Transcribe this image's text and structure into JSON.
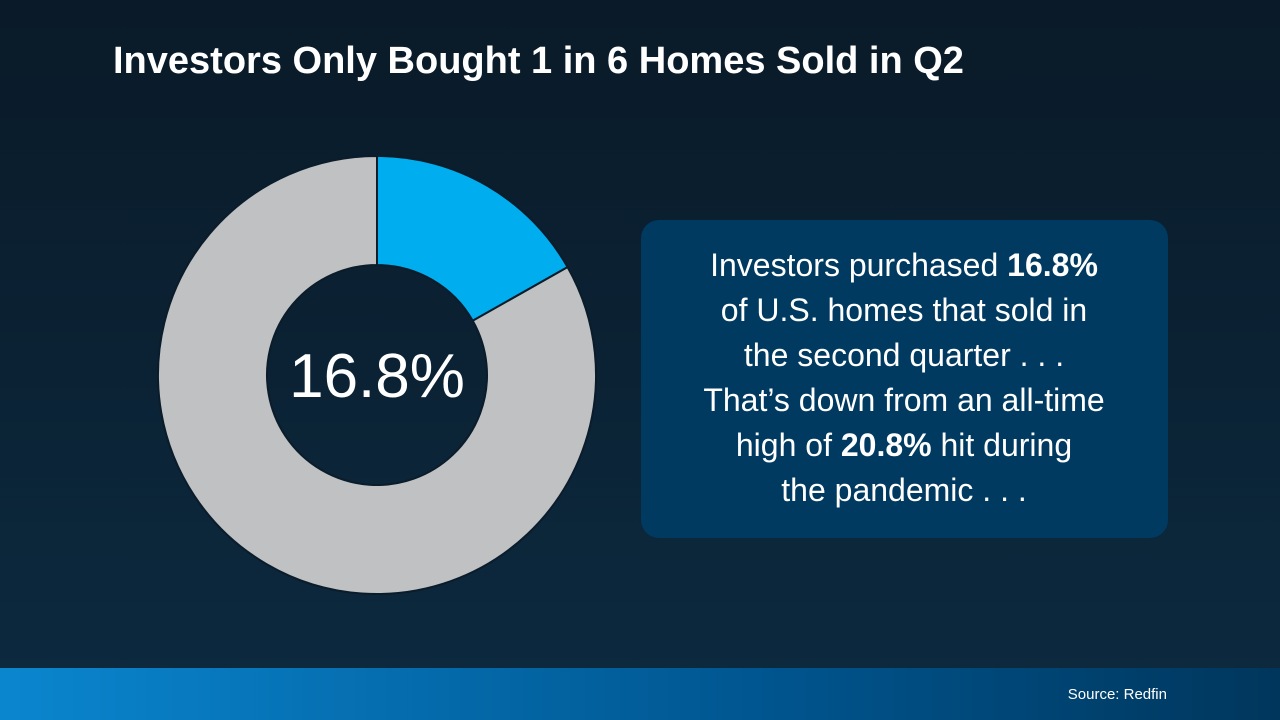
{
  "chart_data": {
    "type": "pie",
    "donut": true,
    "title": "Investors Only Bought 1 in 6 Homes Sold in Q2",
    "values": [
      16.8,
      83.2
    ],
    "value_labels": [
      "16.8%",
      null
    ],
    "colors": [
      "#00adef",
      "#bfc1c3"
    ]
  },
  "callout": [
    [
      {
        "text": "Investors purchased "
      },
      {
        "text": "16.8%",
        "bold": true
      }
    ],
    [
      {
        "text": "of U.S. homes that sold in"
      }
    ],
    [
      {
        "text": "the second quarter . . ."
      }
    ],
    [
      {
        "text": "That’s down from an all-time"
      }
    ],
    [
      {
        "text": "high of "
      },
      {
        "text": "20.8%",
        "bold": true
      },
      {
        "text": " hit during"
      }
    ],
    [
      {
        "text": "the pandemic . . ."
      }
    ]
  ],
  "source": "Source: Redfin"
}
